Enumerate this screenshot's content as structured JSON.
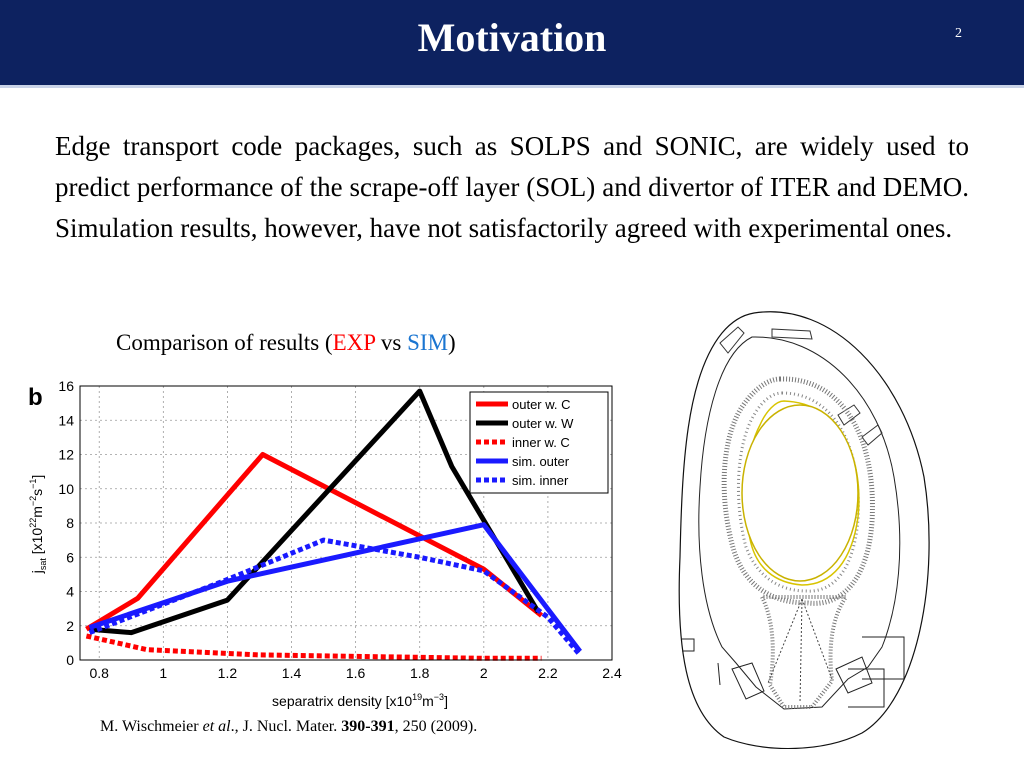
{
  "slide": {
    "title": "Motivation",
    "number": "2",
    "body": "Edge transport code packages, such as SOLPS and SONIC, are widely used to predict performance of the scrape-off layer (SOL) and divertor of ITER and DEMO. Simulation results, however, have not satisfactorily agreed with experimental ones.",
    "caption": {
      "prefix": "Comparison of results (",
      "exp": "EXP",
      "vs": " vs ",
      "sim": "SIM",
      "suffix": ")"
    },
    "reference": {
      "authors": "M. Wischmeier ",
      "etal": "et al",
      "journal": "., J. Nucl. Mater. ",
      "volume": "390-391",
      "rest": ", 250 (2009)."
    }
  },
  "colors": {
    "header": "#0d2260",
    "exp": "#ff0000",
    "sim": "#1a75d1"
  },
  "chart_data": {
    "type": "line",
    "panel_label": "b",
    "xlabel": "separatrix density [x10",
    "xlabel_sup1": "19",
    "xlabel_mid": "m",
    "xlabel_sup2": "−3",
    "xlabel_end": "]",
    "ylabel": "j",
    "ylabel_sub": "sat",
    "ylabel_rest": " [x10",
    "ylabel_sup1": "22",
    "ylabel_mid": "m",
    "ylabel_sup2": "−2",
    "ylabel_mid2": "s",
    "ylabel_sup3": "−1",
    "ylabel_end": "]",
    "xlim": [
      0.74,
      2.4
    ],
    "ylim": [
      0,
      16
    ],
    "xticks": [
      "0.8",
      "1",
      "1.2",
      "1.4",
      "1.6",
      "1.8",
      "2",
      "2.2",
      "2.4"
    ],
    "yticks": [
      "0",
      "2",
      "4",
      "6",
      "8",
      "10",
      "12",
      "14",
      "16"
    ],
    "xtick_values": [
      0.8,
      1.0,
      1.2,
      1.4,
      1.6,
      1.8,
      2.0,
      2.2,
      2.4
    ],
    "ytick_values": [
      0,
      2,
      4,
      6,
      8,
      10,
      12,
      14,
      16
    ],
    "grid": true,
    "legend_position": "top-right",
    "series": [
      {
        "name": "outer w. C",
        "color": "#ff0000",
        "style": "solid",
        "x": [
          0.76,
          0.92,
          1.31,
          2.0,
          2.18
        ],
        "y": [
          1.8,
          3.6,
          12.0,
          5.3,
          2.6
        ]
      },
      {
        "name": "outer w. W",
        "color": "#000000",
        "style": "solid",
        "x": [
          0.77,
          0.9,
          1.2,
          1.8,
          1.9,
          2.17
        ],
        "y": [
          1.8,
          1.6,
          3.5,
          15.7,
          11.3,
          2.8
        ]
      },
      {
        "name": "inner w. C",
        "color": "#ff0000",
        "style": "dotted",
        "x": [
          0.76,
          0.95,
          1.3,
          2.0,
          2.18
        ],
        "y": [
          1.4,
          0.6,
          0.3,
          0.1,
          0.1
        ]
      },
      {
        "name": "sim. outer",
        "color": "#1a1aff",
        "style": "solid",
        "x": [
          0.77,
          1.2,
          2.0,
          2.3
        ],
        "y": [
          1.9,
          4.6,
          7.9,
          0.5
        ]
      },
      {
        "name": "sim. inner",
        "color": "#1a1aff",
        "style": "dotted",
        "x": [
          0.77,
          1.2,
          1.5,
          1.8,
          2.0,
          2.2,
          2.3
        ],
        "y": [
          1.6,
          4.7,
          7.0,
          6.0,
          5.2,
          2.5,
          0.3
        ]
      }
    ]
  }
}
